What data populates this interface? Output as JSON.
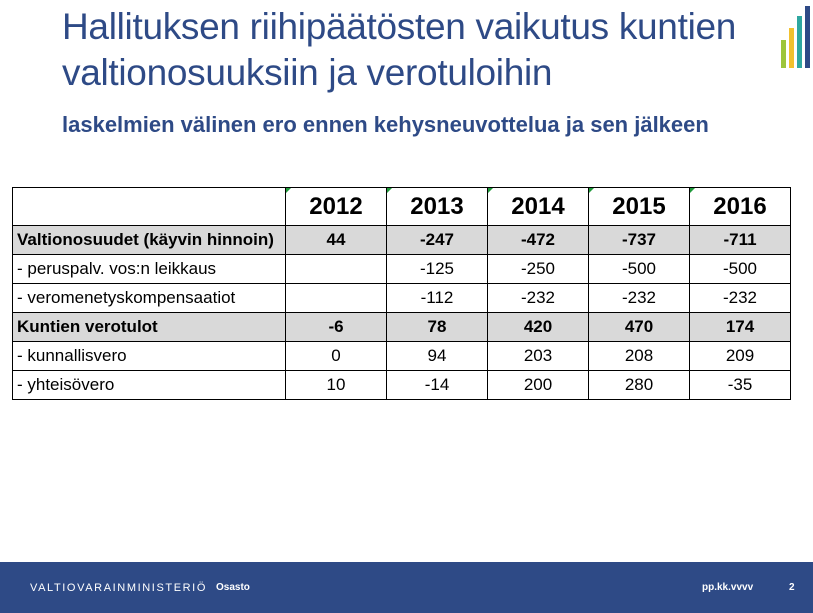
{
  "slide": {
    "title": "Hallituksen riihipäätösten vaikutus kuntien valtionosuuksiin ja verotuloihin",
    "subtitle": "laskelmien välinen ero ennen kehysneuvottelua ja sen jälkeen"
  },
  "logo_colors": [
    "#9dc53b",
    "#f2c12e",
    "#2fa7a0",
    "#2e4a86"
  ],
  "table": {
    "years": [
      "2012",
      "2013",
      "2014",
      "2015",
      "2016"
    ],
    "rows": [
      {
        "label": "Valtionosuudet (käyvin hinnoin)",
        "bold": true,
        "shaded": true,
        "values": [
          "44",
          "-247",
          "-472",
          "-737",
          "-711"
        ]
      },
      {
        "label": " - peruspalv. vos:n leikkaus",
        "bold": false,
        "shaded": false,
        "values": [
          "",
          "-125",
          "-250",
          "-500",
          "-500"
        ]
      },
      {
        "label": " - veromenetyskompensaatiot",
        "bold": false,
        "shaded": false,
        "values": [
          "",
          "-112",
          "-232",
          "-232",
          "-232"
        ]
      },
      {
        "label": "Kuntien verotulot",
        "bold": true,
        "shaded": true,
        "values": [
          "-6",
          "78",
          "420",
          "470",
          "174"
        ]
      },
      {
        "label": " - kunnallisvero",
        "bold": false,
        "shaded": false,
        "values": [
          "0",
          "94",
          "203",
          "208",
          "209"
        ]
      },
      {
        "label": " - yhteisövero",
        "bold": false,
        "shaded": false,
        "values": [
          "10",
          "-14",
          "200",
          "280",
          "-35"
        ]
      }
    ]
  },
  "footer": {
    "brand": "VALTIOVARAINMINISTERIÖ",
    "department": "Osasto",
    "date": "pp.kk.vvvv",
    "page": "2"
  }
}
